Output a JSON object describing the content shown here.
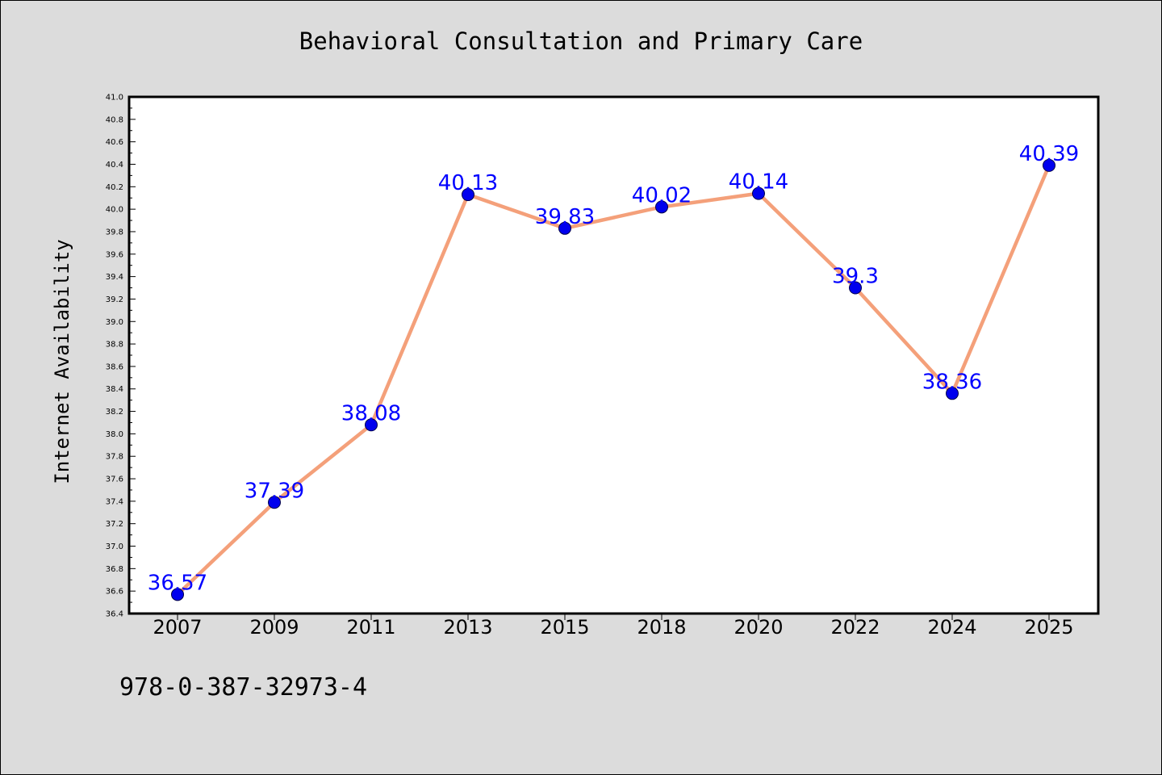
{
  "chart_data": {
    "type": "line",
    "title": "Behavioral Consultation and Primary Care",
    "xlabel": "",
    "ylabel": "Internet Availability",
    "categories": [
      "2007",
      "2009",
      "2011",
      "2013",
      "2015",
      "2018",
      "2020",
      "2022",
      "2024",
      "2025"
    ],
    "series": [
      {
        "values": [
          36.57,
          37.39,
          38.08,
          40.13,
          39.83,
          40.02,
          40.14,
          39.3,
          38.36,
          40.39
        ],
        "labels": [
          "36.57",
          "37.39",
          "38.08",
          "40.13",
          "39.83",
          "40.02",
          "40.14",
          "39.3",
          "38.36",
          "40.39"
        ],
        "line_color": "#f4a07a",
        "marker_color": "#0000ee"
      }
    ],
    "ylim": [
      36.4,
      41.0
    ],
    "yticks": [
      "36.4",
      "36.6",
      "36.8",
      "37.0",
      "37.2",
      "37.4",
      "37.6",
      "37.8",
      "38.0",
      "38.2",
      "38.4",
      "38.6",
      "38.8",
      "39.0",
      "39.2",
      "39.4",
      "39.6",
      "39.8",
      "40.0",
      "40.2",
      "40.4",
      "40.6",
      "40.8",
      "41.0"
    ],
    "grid": false,
    "legend": "none",
    "data_label_color": "#0000ff",
    "background_color": "#dcdcdc",
    "plot_background_color": "#ffffff"
  },
  "footer": {
    "code": "978-0-387-32973-4"
  }
}
